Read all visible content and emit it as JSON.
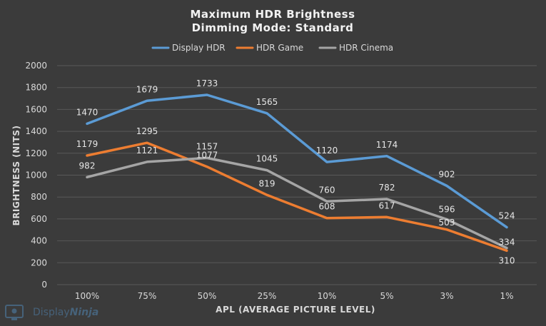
{
  "chart_data": {
    "type": "line",
    "title": [
      "Maximum HDR Brightness",
      "Dimming Mode: Standard"
    ],
    "xlabel": "APL (AVERAGE PICTURE LEVEL)",
    "ylabel": "BRIGHTNESS (NITS)",
    "ylim": [
      0,
      2000
    ],
    "yticks": [
      0,
      200,
      400,
      600,
      800,
      1000,
      1200,
      1400,
      1600,
      1800,
      2000
    ],
    "grid": true,
    "legend_position": "top",
    "categories": [
      "100%",
      "75%",
      "50%",
      "25%",
      "10%",
      "5%",
      "3%",
      "1%"
    ],
    "series": [
      {
        "name": "Display HDR",
        "color": "#5b9bd5",
        "values": [
          1470,
          1679,
          1733,
          1565,
          1120,
          1174,
          902,
          524
        ]
      },
      {
        "name": "HDR Game",
        "color": "#ed7d31",
        "values": [
          1179,
          1295,
          1077,
          819,
          608,
          617,
          503,
          310
        ]
      },
      {
        "name": "HDR Cinema",
        "color": "#a5a5a5",
        "values": [
          982,
          1121,
          1157,
          1045,
          760,
          782,
          596,
          334
        ]
      }
    ]
  },
  "watermark": {
    "part1": "Display",
    "part2": "Ninja",
    "icon": "monitor-icon",
    "color": "#4a6f8f"
  }
}
